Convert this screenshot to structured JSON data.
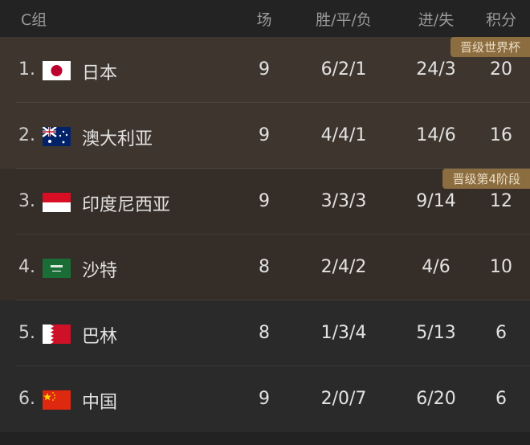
{
  "header": {
    "group": "C组",
    "played": "场",
    "wdl": "胜/平/负",
    "goals": "进/失",
    "points": "积分"
  },
  "colors": {
    "zone_world_cup": "#3e362e",
    "zone_stage4": "#352d27",
    "zone_out": "#2a2a2a",
    "badge": "#8c6d3f"
  },
  "badges": {
    "world_cup": "晋级世界杯",
    "stage4": "晋级第4阶段"
  },
  "rows": [
    {
      "rank": "1.",
      "flag": "japan-flag-icon",
      "name": "日本",
      "played": "9",
      "wdl": "6/2/1",
      "goals": "24/3",
      "points": "20"
    },
    {
      "rank": "2.",
      "flag": "australia-flag-icon",
      "name": "澳大利亚",
      "played": "9",
      "wdl": "4/4/1",
      "goals": "14/6",
      "points": "16"
    },
    {
      "rank": "3.",
      "flag": "indonesia-flag-icon",
      "name": "印度尼西亚",
      "played": "9",
      "wdl": "3/3/3",
      "goals": "9/14",
      "points": "12"
    },
    {
      "rank": "4.",
      "flag": "saudi-arabia-flag-icon",
      "name": "沙特",
      "played": "8",
      "wdl": "2/4/2",
      "goals": "4/6",
      "points": "10"
    },
    {
      "rank": "5.",
      "flag": "bahrain-flag-icon",
      "name": "巴林",
      "played": "8",
      "wdl": "1/3/4",
      "goals": "5/13",
      "points": "6"
    },
    {
      "rank": "6.",
      "flag": "china-flag-icon",
      "name": "中国",
      "played": "9",
      "wdl": "2/0/7",
      "goals": "6/20",
      "points": "6"
    }
  ]
}
